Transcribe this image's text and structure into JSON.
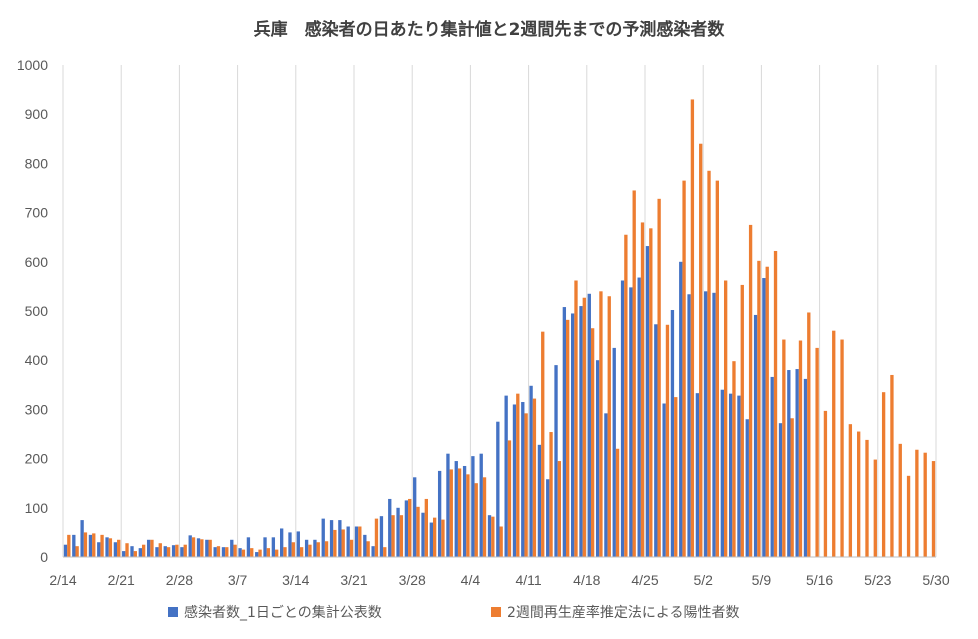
{
  "chart_data": {
    "type": "bar",
    "title": "兵庫　感染者の日あたり集計値と2週間先までの予測感染者数",
    "xlabel": "",
    "ylabel": "",
    "ylim": [
      0,
      1000
    ],
    "yticks": [
      0,
      100,
      200,
      300,
      400,
      500,
      600,
      700,
      800,
      900,
      1000
    ],
    "x_start": "2021-02-14",
    "x_end": "2021-05-30",
    "xtick_labels": [
      "2/14",
      "2/21",
      "2/28",
      "3/7",
      "3/14",
      "3/21",
      "3/28",
      "4/4",
      "4/11",
      "4/18",
      "4/25",
      "5/2",
      "5/9",
      "5/16",
      "5/23",
      "5/30"
    ],
    "grid": "vertical",
    "legend_position": "bottom",
    "colors": {
      "series1": "#4472C4",
      "series2": "#ED7D31",
      "grid": "#D9D9D9",
      "axis": "#BFBFBF"
    },
    "series": [
      {
        "name": "感染者数_1日ごとの集計公表数",
        "values": [
          25,
          45,
          75,
          45,
          30,
          40,
          30,
          12,
          22,
          18,
          35,
          20,
          22,
          24,
          20,
          44,
          38,
          35,
          20,
          20,
          35,
          18,
          40,
          10,
          40,
          40,
          58,
          50,
          52,
          35,
          35,
          78,
          75,
          75,
          62,
          62,
          45,
          22,
          83,
          118,
          100,
          115,
          162,
          90,
          70,
          175,
          210,
          195,
          185,
          205,
          210,
          85,
          275,
          328,
          310,
          315,
          348,
          228,
          158,
          390,
          508,
          495,
          510,
          535,
          400,
          292,
          425,
          562,
          548,
          568,
          632,
          473,
          312,
          502,
          600,
          534,
          333,
          540,
          537,
          340,
          332,
          328,
          280,
          492,
          567,
          366,
          272,
          380,
          382,
          362,
          null,
          null,
          null,
          null,
          null,
          null,
          null,
          null,
          null,
          null,
          null,
          null,
          null,
          null,
          null,
          null
        ]
      },
      {
        "name": "2週間再生産率推定法による陽性者数",
        "values": [
          45,
          22,
          50,
          48,
          45,
          38,
          35,
          28,
          12,
          25,
          35,
          28,
          20,
          25,
          25,
          40,
          36,
          35,
          22,
          20,
          25,
          15,
          18,
          15,
          18,
          15,
          20,
          30,
          20,
          25,
          30,
          32,
          55,
          56,
          35,
          62,
          32,
          78,
          20,
          85,
          85,
          118,
          102,
          118,
          80,
          76,
          178,
          180,
          168,
          150,
          162,
          82,
          62,
          237,
          332,
          292,
          322,
          458,
          254,
          195,
          482,
          562,
          527,
          465,
          540,
          530,
          220,
          655,
          745,
          680,
          668,
          728,
          472,
          325,
          765,
          930,
          840,
          785,
          765,
          562,
          398,
          553,
          675,
          602,
          590,
          622,
          442,
          282,
          440,
          497,
          425,
          297,
          460,
          442,
          270,
          255,
          238,
          198,
          335,
          370,
          230,
          165,
          218,
          212,
          195,
          null
        ]
      }
    ]
  }
}
